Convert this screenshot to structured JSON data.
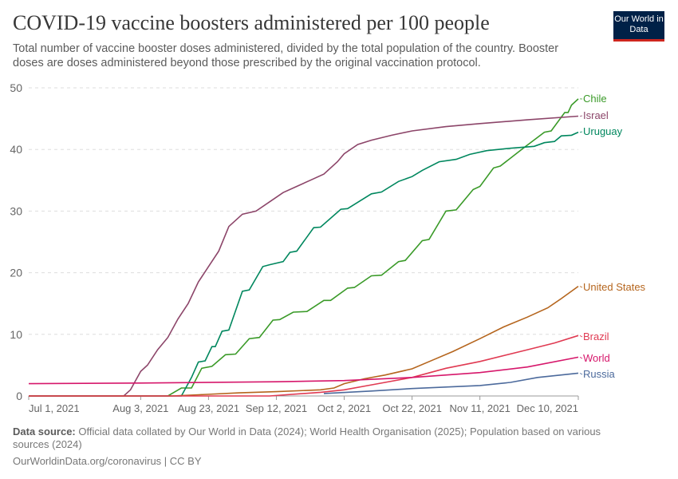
{
  "title": "COVID-19 vaccine boosters administered per 100 people",
  "subtitle": "Total number of vaccine booster doses administered, divided by the total population of the country. Booster doses are doses administered beyond those prescribed by the original vaccination protocol.",
  "logo": "Our World in Data",
  "footer": {
    "source_label": "Data source:",
    "source_text": " Official data collated by Our World in Data (2024); World Health Organisation (2025); Population based on various sources (2024)",
    "link": "OurWorldinData.org/coronavirus | CC BY"
  },
  "chart_data": {
    "type": "line",
    "title": "COVID-19 vaccine boosters administered per 100 people",
    "ylim": [
      0,
      50
    ],
    "xlim": [
      "2021-07-01",
      "2021-12-10"
    ],
    "yticks": [
      0,
      10,
      20,
      30,
      40,
      50
    ],
    "xticks": [
      {
        "date": "2021-07-01",
        "label": "Jul 1, 2021"
      },
      {
        "date": "2021-08-03",
        "label": "Aug 3, 2021"
      },
      {
        "date": "2021-08-23",
        "label": "Aug 23, 2021"
      },
      {
        "date": "2021-09-12",
        "label": "Sep 12, 2021"
      },
      {
        "date": "2021-10-02",
        "label": "Oct 2, 2021"
      },
      {
        "date": "2021-10-22",
        "label": "Oct 22, 2021"
      },
      {
        "date": "2021-11-11",
        "label": "Nov 11, 2021"
      },
      {
        "date": "2021-12-10",
        "label": "Dec 10, 2021"
      }
    ],
    "grid": "horizontal dashed",
    "legend": "line-end labels right",
    "series": [
      {
        "name": "Chile",
        "color": "#3a9a28",
        "points": [
          [
            "2021-07-01",
            0
          ],
          [
            "2021-08-11",
            0
          ],
          [
            "2021-08-15",
            1.3
          ],
          [
            "2021-08-18",
            1.3
          ],
          [
            "2021-08-21",
            4.5
          ],
          [
            "2021-08-24",
            4.8
          ],
          [
            "2021-08-28",
            6.7
          ],
          [
            "2021-08-31",
            6.8
          ],
          [
            "2021-09-04",
            9.3
          ],
          [
            "2021-09-07",
            9.5
          ],
          [
            "2021-09-11",
            12.3
          ],
          [
            "2021-09-13",
            12.4
          ],
          [
            "2021-09-17",
            13.6
          ],
          [
            "2021-09-21",
            13.7
          ],
          [
            "2021-09-26",
            15.5
          ],
          [
            "2021-09-28",
            15.5
          ],
          [
            "2021-10-03",
            17.5
          ],
          [
            "2021-10-05",
            17.6
          ],
          [
            "2021-10-10",
            19.5
          ],
          [
            "2021-10-13",
            19.6
          ],
          [
            "2021-10-18",
            21.8
          ],
          [
            "2021-10-20",
            22
          ],
          [
            "2021-10-25",
            25.2
          ],
          [
            "2021-10-27",
            25.4
          ],
          [
            "2021-11-01",
            30
          ],
          [
            "2021-11-04",
            30.2
          ],
          [
            "2021-11-09",
            33.5
          ],
          [
            "2021-11-11",
            34
          ],
          [
            "2021-11-15",
            37
          ],
          [
            "2021-11-17",
            37.3
          ],
          [
            "2021-11-24",
            40.3
          ],
          [
            "2021-11-30",
            42.8
          ],
          [
            "2021-12-02",
            43
          ],
          [
            "2021-12-06",
            46
          ],
          [
            "2021-12-07",
            46
          ],
          [
            "2021-12-08",
            47.2
          ],
          [
            "2021-12-10",
            48.2
          ]
        ]
      },
      {
        "name": "Israel",
        "color": "#8c4569",
        "points": [
          [
            "2021-07-01",
            0
          ],
          [
            "2021-07-29",
            0
          ],
          [
            "2021-07-31",
            1
          ],
          [
            "2021-08-03",
            4
          ],
          [
            "2021-08-05",
            5
          ],
          [
            "2021-08-08",
            7.5
          ],
          [
            "2021-08-11",
            9.5
          ],
          [
            "2021-08-14",
            12.5
          ],
          [
            "2021-08-17",
            15
          ],
          [
            "2021-08-20",
            18.5
          ],
          [
            "2021-08-23",
            21
          ],
          [
            "2021-08-26",
            23.5
          ],
          [
            "2021-08-29",
            27.5
          ],
          [
            "2021-09-02",
            29.5
          ],
          [
            "2021-09-06",
            30
          ],
          [
            "2021-09-10",
            31.5
          ],
          [
            "2021-09-14",
            33
          ],
          [
            "2021-09-18",
            34
          ],
          [
            "2021-09-22",
            35
          ],
          [
            "2021-09-26",
            36
          ],
          [
            "2021-09-30",
            38
          ],
          [
            "2021-10-02",
            39.3
          ],
          [
            "2021-10-06",
            40.8
          ],
          [
            "2021-10-10",
            41.5
          ],
          [
            "2021-10-16",
            42.3
          ],
          [
            "2021-10-22",
            43
          ],
          [
            "2021-11-01",
            43.7
          ],
          [
            "2021-11-11",
            44.2
          ],
          [
            "2021-11-25",
            44.8
          ],
          [
            "2021-12-10",
            45.4
          ]
        ]
      },
      {
        "name": "Uruguay",
        "color": "#00875e",
        "points": [
          [
            "2021-07-01",
            0
          ],
          [
            "2021-08-15",
            0
          ],
          [
            "2021-08-18",
            3
          ],
          [
            "2021-08-20",
            5.5
          ],
          [
            "2021-08-22",
            5.7
          ],
          [
            "2021-08-24",
            8
          ],
          [
            "2021-08-25",
            8
          ],
          [
            "2021-08-27",
            10.5
          ],
          [
            "2021-08-29",
            10.7
          ],
          [
            "2021-09-02",
            17
          ],
          [
            "2021-09-04",
            17.2
          ],
          [
            "2021-09-08",
            21
          ],
          [
            "2021-09-10",
            21.3
          ],
          [
            "2021-09-14",
            21.8
          ],
          [
            "2021-09-16",
            23.3
          ],
          [
            "2021-09-18",
            23.5
          ],
          [
            "2021-09-23",
            27.3
          ],
          [
            "2021-09-25",
            27.4
          ],
          [
            "2021-10-01",
            30.3
          ],
          [
            "2021-10-03",
            30.4
          ],
          [
            "2021-10-10",
            32.8
          ],
          [
            "2021-10-13",
            33.1
          ],
          [
            "2021-10-18",
            34.8
          ],
          [
            "2021-10-22",
            35.6
          ],
          [
            "2021-10-25",
            36.6
          ],
          [
            "2021-10-30",
            38
          ],
          [
            "2021-11-04",
            38.4
          ],
          [
            "2021-11-08",
            39.2
          ],
          [
            "2021-11-13",
            39.8
          ],
          [
            "2021-11-20",
            40.2
          ],
          [
            "2021-11-27",
            40.5
          ],
          [
            "2021-11-30",
            41.1
          ],
          [
            "2021-12-03",
            41.3
          ],
          [
            "2021-12-05",
            42.2
          ],
          [
            "2021-12-08",
            42.3
          ],
          [
            "2021-12-10",
            42.8
          ]
        ]
      },
      {
        "name": "United States",
        "color": "#b5651d",
        "points": [
          [
            "2021-07-01",
            0
          ],
          [
            "2021-08-12",
            0
          ],
          [
            "2021-08-20",
            0.2
          ],
          [
            "2021-09-01",
            0.5
          ],
          [
            "2021-09-12",
            0.7
          ],
          [
            "2021-09-25",
            1
          ],
          [
            "2021-09-29",
            1.3
          ],
          [
            "2021-10-02",
            2
          ],
          [
            "2021-10-08",
            2.8
          ],
          [
            "2021-10-14",
            3.4
          ],
          [
            "2021-10-22",
            4.4
          ],
          [
            "2021-10-28",
            5.8
          ],
          [
            "2021-11-03",
            7.2
          ],
          [
            "2021-11-11",
            9.3
          ],
          [
            "2021-11-18",
            11.2
          ],
          [
            "2021-11-25",
            12.8
          ],
          [
            "2021-12-01",
            14.3
          ],
          [
            "2021-12-05",
            15.8
          ],
          [
            "2021-12-10",
            17.8
          ]
        ]
      },
      {
        "name": "Brazil",
        "color": "#e03a52",
        "points": [
          [
            "2021-07-01",
            0
          ],
          [
            "2021-09-10",
            0
          ],
          [
            "2021-09-25",
            0.6
          ],
          [
            "2021-10-02",
            1
          ],
          [
            "2021-10-10",
            1.8
          ],
          [
            "2021-10-22",
            3
          ],
          [
            "2021-11-01",
            4.5
          ],
          [
            "2021-11-11",
            5.6
          ],
          [
            "2021-11-25",
            7.5
          ],
          [
            "2021-12-03",
            8.6
          ],
          [
            "2021-12-10",
            9.8
          ]
        ]
      },
      {
        "name": "World",
        "color": "#d6176b",
        "points": [
          [
            "2021-07-01",
            2
          ],
          [
            "2021-08-03",
            2.1
          ],
          [
            "2021-09-12",
            2.3
          ],
          [
            "2021-10-02",
            2.5
          ],
          [
            "2021-10-22",
            3
          ],
          [
            "2021-11-11",
            3.8
          ],
          [
            "2021-11-25",
            4.7
          ],
          [
            "2021-12-10",
            6.3
          ]
        ]
      },
      {
        "name": "Russia",
        "color": "#4c6a9c",
        "points": [
          [
            "2021-09-26",
            0.4
          ],
          [
            "2021-10-10",
            0.8
          ],
          [
            "2021-10-22",
            1.2
          ],
          [
            "2021-11-11",
            1.7
          ],
          [
            "2021-11-20",
            2.2
          ],
          [
            "2021-11-28",
            3
          ],
          [
            "2021-12-10",
            3.7
          ]
        ]
      }
    ]
  }
}
